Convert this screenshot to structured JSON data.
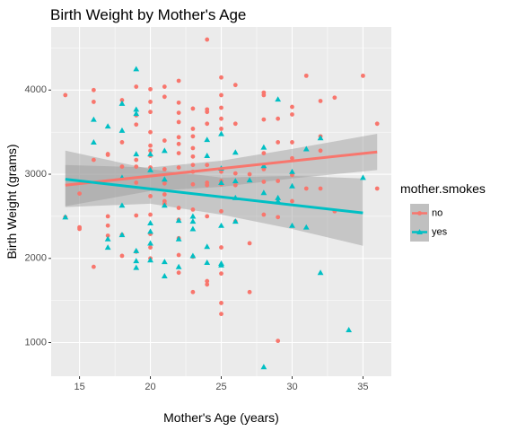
{
  "chart_data": {
    "type": "scatter",
    "title": "Birth Weight by Mother's Age",
    "xlabel": "Mother's Age (years)",
    "ylabel": "Birth Weight (grams)",
    "xlim": [
      13.0,
      37.0
    ],
    "ylim": [
      600,
      4750
    ],
    "x_ticks": [
      15,
      20,
      25,
      30,
      35
    ],
    "y_ticks": [
      1000,
      2000,
      3000,
      4000
    ],
    "grid": true,
    "legend_title": "mother.smokes",
    "legend_position": "right",
    "series": [
      {
        "name": "no",
        "color": "#F8766D",
        "marker": "circle",
        "trend": {
          "x": [
            14,
            36
          ],
          "y": [
            2870,
            3265
          ]
        },
        "band": {
          "x": [
            14,
            20,
            25,
            30,
            36
          ],
          "lower": [
            2620,
            2800,
            2850,
            2950,
            3050
          ],
          "upper": [
            3110,
            3080,
            3160,
            3300,
            3480
          ]
        },
        "points": [
          [
            14,
            3940
          ],
          [
            14,
            2490
          ],
          [
            15,
            2370
          ],
          [
            15,
            2350
          ],
          [
            15,
            2770
          ],
          [
            16,
            4000
          ],
          [
            16,
            3860
          ],
          [
            16,
            3170
          ],
          [
            16,
            1900
          ],
          [
            17,
            3240
          ],
          [
            17,
            3230
          ],
          [
            17,
            2500
          ],
          [
            17,
            2390
          ],
          [
            17,
            2270
          ],
          [
            18,
            3880
          ],
          [
            18,
            3380
          ],
          [
            18,
            3090
          ],
          [
            18,
            2280
          ],
          [
            18,
            2030
          ],
          [
            19,
            4040
          ],
          [
            19,
            3700
          ],
          [
            19,
            3590
          ],
          [
            19,
            3170
          ],
          [
            19,
            3090
          ],
          [
            19,
            2900
          ],
          [
            19,
            2510
          ],
          [
            19,
            2080
          ],
          [
            20,
            4010
          ],
          [
            20,
            3860
          ],
          [
            20,
            3740
          ],
          [
            20,
            3500
          ],
          [
            20,
            3340
          ],
          [
            20,
            3280
          ],
          [
            20,
            3220
          ],
          [
            20,
            3080
          ],
          [
            20,
            2740
          ],
          [
            20,
            2520
          ],
          [
            20,
            2290
          ],
          [
            20,
            2130
          ],
          [
            20,
            2000
          ],
          [
            21,
            4040
          ],
          [
            21,
            3920
          ],
          [
            21,
            3400
          ],
          [
            21,
            3060
          ],
          [
            21,
            2890
          ],
          [
            21,
            2760
          ],
          [
            21,
            2680
          ],
          [
            21,
            2650
          ],
          [
            22,
            4110
          ],
          [
            22,
            3850
          ],
          [
            22,
            3730
          ],
          [
            22,
            3620
          ],
          [
            22,
            3440
          ],
          [
            22,
            3360
          ],
          [
            22,
            3250
          ],
          [
            22,
            3080
          ],
          [
            22,
            2600
          ],
          [
            22,
            2460
          ],
          [
            22,
            2240
          ],
          [
            22,
            2040
          ],
          [
            22,
            1830
          ],
          [
            23,
            3780
          ],
          [
            23,
            3540
          ],
          [
            23,
            3450
          ],
          [
            23,
            3310
          ],
          [
            23,
            3210
          ],
          [
            23,
            3110
          ],
          [
            23,
            3030
          ],
          [
            23,
            2880
          ],
          [
            23,
            2580
          ],
          [
            23,
            2020
          ],
          [
            23,
            1600
          ],
          [
            24,
            4600
          ],
          [
            24,
            3770
          ],
          [
            24,
            3740
          ],
          [
            24,
            3600
          ],
          [
            24,
            3110
          ],
          [
            24,
            2900
          ],
          [
            24,
            2870
          ],
          [
            24,
            2500
          ],
          [
            24,
            1730
          ],
          [
            24,
            1690
          ],
          [
            25,
            4150
          ],
          [
            25,
            3940
          ],
          [
            25,
            3790
          ],
          [
            25,
            3660
          ],
          [
            25,
            3540
          ],
          [
            25,
            3030
          ],
          [
            25,
            2920
          ],
          [
            25,
            2880
          ],
          [
            25,
            2560
          ],
          [
            25,
            2130
          ],
          [
            25,
            1820
          ],
          [
            25,
            1470
          ],
          [
            25,
            1340
          ],
          [
            26,
            4060
          ],
          [
            26,
            3600
          ],
          [
            26,
            3010
          ],
          [
            26,
            2870
          ],
          [
            26,
            2440
          ],
          [
            27,
            3000
          ],
          [
            27,
            2180
          ],
          [
            27,
            1600
          ],
          [
            28,
            3970
          ],
          [
            28,
            3940
          ],
          [
            28,
            3650
          ],
          [
            28,
            3250
          ],
          [
            28,
            3060
          ],
          [
            28,
            2910
          ],
          [
            28,
            2520
          ],
          [
            29,
            3660
          ],
          [
            29,
            3380
          ],
          [
            29,
            2920
          ],
          [
            29,
            2490
          ],
          [
            29,
            1020
          ],
          [
            30,
            3800
          ],
          [
            30,
            3710
          ],
          [
            30,
            3380
          ],
          [
            30,
            3190
          ],
          [
            30,
            2990
          ],
          [
            30,
            2680
          ],
          [
            31,
            4170
          ],
          [
            31,
            2830
          ],
          [
            32,
            3870
          ],
          [
            32,
            3450
          ],
          [
            32,
            3280
          ],
          [
            32,
            2830
          ],
          [
            33,
            3910
          ],
          [
            33,
            2560
          ],
          [
            35,
            4170
          ],
          [
            36,
            3600
          ],
          [
            36,
            2830
          ]
        ]
      },
      {
        "name": "yes",
        "color": "#00BFC4",
        "marker": "triangle",
        "trend": {
          "x": [
            14,
            35
          ],
          "y": [
            2940,
            2540
          ]
        },
        "band": {
          "x": [
            14,
            20,
            25,
            30,
            35
          ],
          "lower": [
            2610,
            2650,
            2520,
            2350,
            2150
          ],
          "upper": [
            3280,
            3060,
            2960,
            2980,
            2950
          ]
        },
        "points": [
          [
            14,
            2490
          ],
          [
            16,
            3650
          ],
          [
            16,
            3380
          ],
          [
            17,
            3570
          ],
          [
            17,
            2230
          ],
          [
            17,
            2130
          ],
          [
            18,
            3840
          ],
          [
            18,
            3520
          ],
          [
            18,
            2960
          ],
          [
            18,
            2630
          ],
          [
            18,
            2280
          ],
          [
            19,
            4250
          ],
          [
            19,
            3770
          ],
          [
            19,
            3720
          ],
          [
            19,
            3240
          ],
          [
            19,
            2090
          ],
          [
            19,
            1970
          ],
          [
            19,
            1890
          ],
          [
            20,
            3240
          ],
          [
            20,
            3050
          ],
          [
            20,
            2420
          ],
          [
            20,
            2320
          ],
          [
            20,
            2180
          ],
          [
            20,
            1980
          ],
          [
            21,
            3280
          ],
          [
            21,
            2940
          ],
          [
            21,
            2630
          ],
          [
            21,
            1960
          ],
          [
            21,
            1790
          ],
          [
            22,
            2450
          ],
          [
            22,
            2230
          ],
          [
            22,
            1900
          ],
          [
            23,
            2500
          ],
          [
            23,
            2440
          ],
          [
            23,
            2350
          ],
          [
            23,
            2030
          ],
          [
            24,
            3410
          ],
          [
            24,
            3220
          ],
          [
            24,
            2140
          ],
          [
            24,
            1950
          ],
          [
            25,
            3480
          ],
          [
            25,
            3070
          ],
          [
            25,
            2900
          ],
          [
            25,
            2390
          ],
          [
            25,
            1940
          ],
          [
            25,
            1920
          ],
          [
            26,
            3260
          ],
          [
            26,
            2920
          ],
          [
            26,
            2720
          ],
          [
            26,
            2440
          ],
          [
            27,
            2930
          ],
          [
            28,
            3320
          ],
          [
            28,
            3100
          ],
          [
            28,
            2780
          ],
          [
            28,
            710
          ],
          [
            29,
            3890
          ],
          [
            29,
            2720
          ],
          [
            29,
            2680
          ],
          [
            30,
            3030
          ],
          [
            30,
            2860
          ],
          [
            30,
            2390
          ],
          [
            31,
            3300
          ],
          [
            31,
            2370
          ],
          [
            32,
            1830
          ],
          [
            32,
            3430
          ],
          [
            34,
            1150
          ],
          [
            35,
            2960
          ]
        ]
      }
    ]
  }
}
